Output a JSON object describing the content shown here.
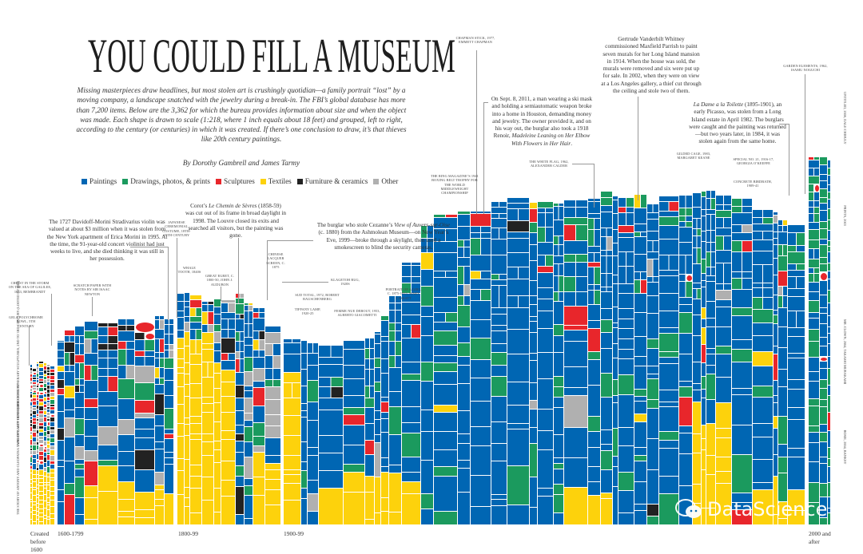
{
  "title": "YOU COULD FILL A MUSEUM",
  "intro": "Missing masterpieces draw headlines, but most stolen art is crushingly quotidian—a family portrait “lost” by a moving company, a landscape snatched with the jewelry during a break-in. The FBI’s global database has more than 7,200 items. Below are the 3,362 for which the bureau provides information about size and when the object was made. Each shape is drawn to scale (1:218, where 1 inch equals about 18 feet) and grouped, left to right, according to the century (or centuries) in which it was created. If there’s one conclusion to draw, it’s that thieves like 20th century paintings.",
  "byline": "By Dorothy Gambrell and James Tarmy",
  "legend": [
    {
      "label": "Paintings",
      "color": "#0066b3"
    },
    {
      "label": "Drawings, photos, & prints",
      "color": "#1b9a5e"
    },
    {
      "label": "Sculptures",
      "color": "#e8262b"
    },
    {
      "label": "Textiles",
      "color": "#fdd20c"
    },
    {
      "label": "Furniture & ceramics",
      "color": "#222222"
    },
    {
      "label": "Other",
      "color": "#b0b0b0"
    }
  ],
  "periods": [
    "Created before 1600",
    "1600-1799",
    "1800-99",
    "1900-99",
    "2000 and after"
  ],
  "notes": {
    "stradivarius": "The 1727 Davidoff-Morini Stradivarius violin was valued at about $3 million when it was stolen from the New York apartment of Erica Morini in 1995. At the time, the 91-year-old concert violinist had just weeks to live, and she died thinking it was still in her possession.",
    "corot_title": "Le Chemin de Sèvres",
    "corot_pre": "Corot’s ",
    "corot_post": " (1858-59) was cut out of its frame in broad daylight in 1998. The Louvre closed its exits and searched all visitors, but the painting was gone.",
    "cezanne_pre": "The burglar who stole Cezanne’s ",
    "cezanne_title": "View of Auvers-sur-Oise",
    "cezanne_post": " (c. 1880) from the Ashmolean Museum—on New Year’s Eve, 1999—broke through a skylight, then used a smokescreen to blind the security cameras.",
    "houston_pre": "On Sept. 8, 2011, a man wearing a ski mask and holding a semiautomatic weapon broke into a home in Houston, demanding money and jewelry. The owner provided it, and on his way out, the burglar also took a 1918 Renoir, ",
    "houston_title": "Madeleine Leaning on Her Elbow With Flowers in Her Hair",
    "houston_post": ".",
    "whitney": "Gertrude Vanderbilt Whitney commissioned Maxfield Parrish to paint seven murals for her Long Island mansion in 1914. When the house was sold, the murals were removed and six were put up for sale. In 2002, when they were on view at a Los Angeles gallery, a thief cut through the ceiling and stole two of them.",
    "picasso_title": "La Dame a la Toilette",
    "picasso_post": " (1895-1901), an early Picasso, was stolen from a Long Island estate in April 1982. The burglars were caught and the painting was returned—but two years later, in 1984, it was stolen again from the same home."
  },
  "tags": {
    "rembrandt": "Christ in the Storm on the Sea of Galilee, 1633, Rembrandt",
    "gela": "Gela polychrome bowl, 5th century",
    "limestone": "Limestone funerary sculptures, 2nd to 3rd century (looted by ISIS)",
    "tang": "Tang dynasty horse, 8th century",
    "antony": "The Story of Antony and Cleopatra tapestry, 16th century",
    "newton": "Scratch paper with notes by Sir Isaac Newton",
    "japanese": "Japanese ceremonial costume, 18th-19th century",
    "whale": "Whale tooth, 1840s",
    "egret": "Great egret, c. 1800-50, John J. Audubon",
    "lacquer": "Chinese lacquer screen, c. 1875",
    "klagetoh": "Klagetoh rug, 1920s",
    "sudtotal": "Sud Total, 1972, Robert Rauschenberg",
    "tiffany": "Tiffany lamp, 1920-25",
    "femme": "Femme nue debout, 1953, Alberto Giacometti",
    "cassatt": "Portrait of a girl, c. 1875-1925, Mary Cassatt",
    "chapman": "Chapman Stick, 1977, Emmett Chapman",
    "ring": "The Ring magazine’s 1941 boxing belt trophy for the world middleweight championship",
    "whiteflag": "The White Flag, 1962, Alexander Calder",
    "gilded": "Gilded cage, 1983, Margaret Keane",
    "okeeffe": "Special No. 21, 1916-17, Georgia O’Keeffe",
    "birdbath": "Concrete birdbath, 1909-41",
    "noguchi": "Garden elements, 1962, Isamu Noguchi",
    "right1": "Untitled, 2006, Dale Chihuly",
    "right2": "Prints, 2003",
    "right3": "Mr. Clown, 2004, Takashi Murakami",
    "right4": "Rosie, 2004, Banksy"
  },
  "watermark": "DataScience"
}
